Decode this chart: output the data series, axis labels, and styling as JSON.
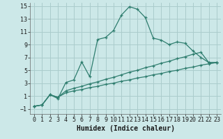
{
  "xlabel": "Humidex (Indice chaleur)",
  "background_color": "#cce8e8",
  "grid_color": "#aacccc",
  "line_color": "#2e7d6e",
  "xlim": [
    -0.5,
    23.5
  ],
  "ylim": [
    -1.8,
    15.5
  ],
  "xticks": [
    0,
    1,
    2,
    3,
    4,
    5,
    6,
    7,
    8,
    9,
    10,
    11,
    12,
    13,
    14,
    15,
    16,
    17,
    18,
    19,
    20,
    21,
    22,
    23
  ],
  "yticks": [
    -1,
    1,
    3,
    5,
    7,
    9,
    11,
    13,
    15
  ],
  "series1_x": [
    0,
    1,
    2,
    3,
    4,
    5,
    6,
    7,
    8,
    9,
    10,
    11,
    12,
    13,
    14,
    15,
    16,
    17,
    18,
    19,
    20,
    21,
    22,
    23
  ],
  "series1_y": [
    -0.6,
    -0.4,
    1.2,
    0.6,
    3.1,
    3.5,
    6.3,
    4.0,
    9.8,
    10.1,
    11.2,
    13.6,
    14.9,
    14.5,
    13.2,
    10.0,
    9.7,
    9.0,
    9.4,
    9.2,
    8.0,
    7.0,
    6.2,
    6.2
  ],
  "series2_x": [
    0,
    1,
    2,
    3,
    4,
    5,
    6,
    7,
    8,
    9,
    10,
    11,
    12,
    13,
    14,
    15,
    16,
    17,
    18,
    19,
    20,
    21,
    22,
    23
  ],
  "series2_y": [
    -0.6,
    -0.4,
    1.2,
    0.8,
    1.8,
    2.2,
    2.5,
    2.9,
    3.2,
    3.6,
    3.9,
    4.3,
    4.7,
    5.0,
    5.4,
    5.7,
    6.1,
    6.4,
    6.8,
    7.1,
    7.5,
    7.8,
    6.2,
    6.2
  ],
  "series3_x": [
    0,
    1,
    2,
    3,
    4,
    5,
    6,
    7,
    8,
    9,
    10,
    11,
    12,
    13,
    14,
    15,
    16,
    17,
    18,
    19,
    20,
    21,
    22,
    23
  ],
  "series3_y": [
    -0.6,
    -0.4,
    1.2,
    0.8,
    1.5,
    1.8,
    2.0,
    2.3,
    2.5,
    2.8,
    3.0,
    3.3,
    3.5,
    3.8,
    4.0,
    4.3,
    4.5,
    4.8,
    5.0,
    5.3,
    5.5,
    5.8,
    6.0,
    6.2
  ],
  "xlabel_fontsize": 7,
  "tick_fontsize": 6
}
